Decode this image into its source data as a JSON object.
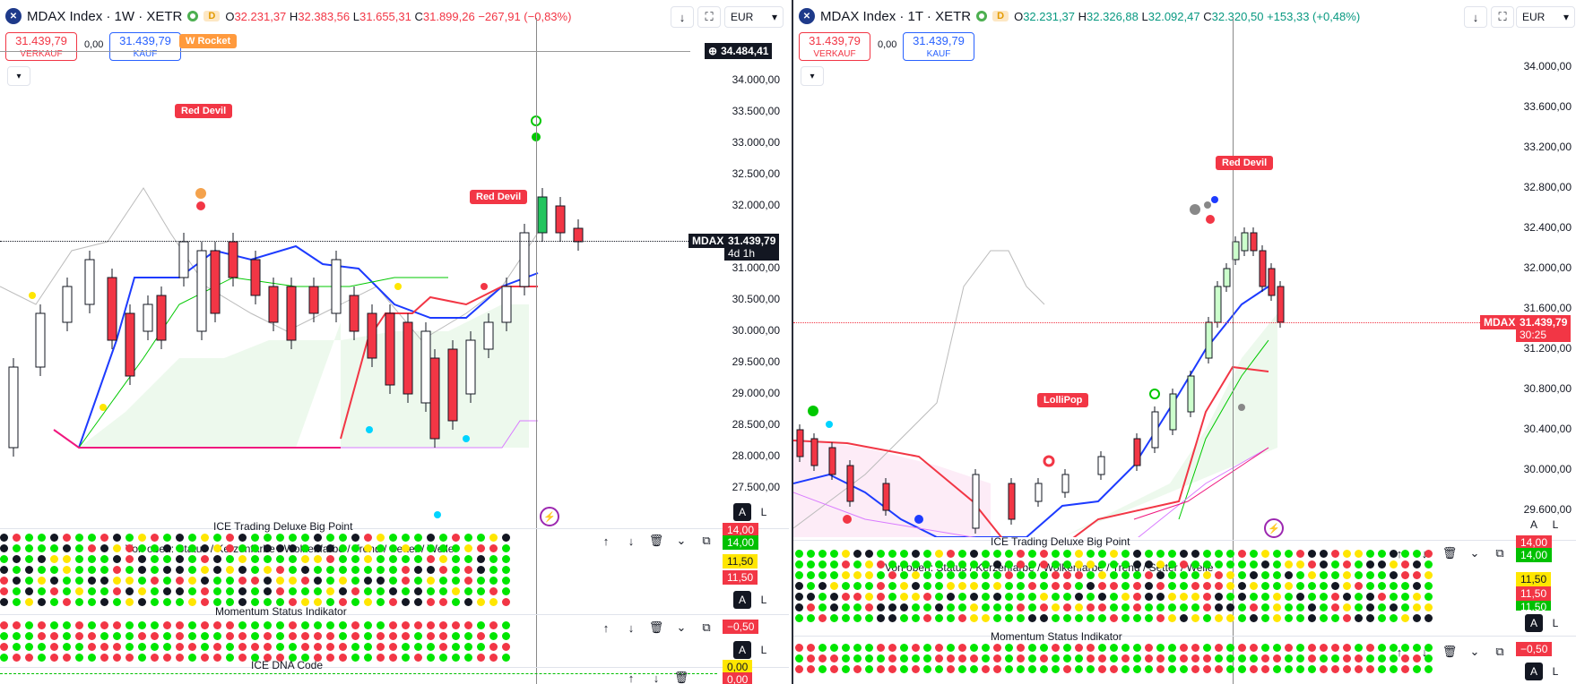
{
  "colors": {
    "up": "#22c55e",
    "down": "#f23645",
    "blue": "#1d3bff",
    "red_line": "#f23645",
    "pink": "#f0187f",
    "lime": "#00e600",
    "yellow": "#ffe600",
    "black": "#131722"
  },
  "left": {
    "symbol": "MDAX Index · 1W · XETR",
    "d_tag": "D",
    "o_label": "O",
    "o": "32.231,37",
    "h_label": "H",
    "h": "32.383,56",
    "l_label": "L",
    "l": "31.655,31",
    "c_label": "C",
    "c": "31.899,26",
    "chg": "−267,91 (−0,83%)",
    "currency": "EUR",
    "sell_price": "31.439,79",
    "sell_label": "VERKAUF",
    "spread": "0,00",
    "buy_price": "31.439,79",
    "buy_label": "KAUF",
    "rocket": "W Rocket",
    "crosshair_price": "34.484,41",
    "axis": [
      "34.000,00",
      "33.500,00",
      "33.000,00",
      "32.500,00",
      "32.000,00",
      "31.000,00",
      "30.500,00",
      "30.000,00",
      "29.500,00",
      "29.000,00",
      "28.500,00",
      "28.000,00",
      "27.500,00"
    ],
    "last_tag": "MDAX",
    "last_price": "31.439,79",
    "last_time": "4d 1h",
    "signals": [
      "Red Devil",
      "Red Devil"
    ],
    "ind1_title": "ICE Trading Deluxe Big Point",
    "ind1_sub": "Von oben: Status / Kerzenfarbe / Wolkenfarbe / Trend / Setter / Welle",
    "ind1_badges": [
      "14,00",
      "11,50",
      "11,50"
    ],
    "ind1_badge_top": "14,00",
    "ind2_title": "Momentum Status Indikator",
    "ind2_badge": "−0,50",
    "ind3_title": "ICE DNA Code",
    "ind3_badges": [
      "0,00",
      "0,00"
    ],
    "btn_a": "A",
    "btn_l": "L"
  },
  "right": {
    "symbol": "MDAX Index · 1T · XETR",
    "d_tag": "D",
    "o_label": "O",
    "o": "32.231,37",
    "h_label": "H",
    "h": "32.326,88",
    "l_label": "L",
    "l": "32.092,47",
    "c_label": "C",
    "c": "32.320,50",
    "chg": "+153,33 (+0,48%)",
    "currency": "EUR",
    "sell_price": "31.439,79",
    "sell_label": "VERKAUF",
    "spread": "0,00",
    "buy_price": "31.439,79",
    "buy_label": "KAUF",
    "axis": [
      "34.000,00",
      "33.600,00",
      "33.200,00",
      "32.800,00",
      "32.400,00",
      "32.000,00",
      "31.600,00",
      "31.200,00",
      "30.800,00",
      "30.400,00",
      "30.000,00",
      "29.600,00"
    ],
    "last_tag": "MDAX",
    "last_price": "31.439,79",
    "last_time": "30:25",
    "signals": [
      "Red Devil",
      "LolliPop"
    ],
    "ind1_title": "ICE Trading Deluxe Big Point",
    "ind1_sub": "Von oben: Status / Kerzenfarbe / Wolkenfarbe / Trend / Setter / Welle",
    "ind1_badges": [
      "14,00",
      "11,50",
      "11,50",
      "11,50"
    ],
    "ind1_badge_top": "14,00",
    "ind2_title": "Momentum Status Indikator",
    "ind2_badge": "−0,50",
    "btn_a": "A",
    "btn_l": "L"
  },
  "icons": [
    "arrow-down-icon",
    "fullscreen-icon",
    "chevron-down-icon",
    "arrow-up-icon",
    "trash-icon",
    "collapse-icon",
    "maximize-icon",
    "lightning-icon",
    "plus-icon"
  ]
}
